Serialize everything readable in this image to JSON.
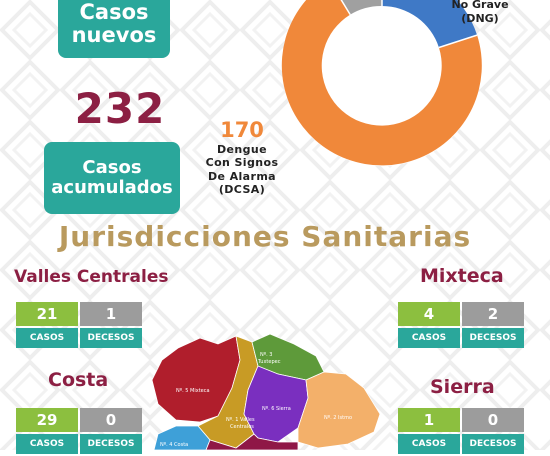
{
  "header": {
    "nuevos_line1": "Casos",
    "nuevos_line2": "nuevos",
    "acumulados_number": "232",
    "acumulados_line1": "Casos",
    "acumulados_line2": "acumulados"
  },
  "donut": {
    "dng_label_line1": "No Grave",
    "dng_label_line2": "(DNG)",
    "dcsa_value": "170",
    "dcsa_line1": "Dengue",
    "dcsa_line2": "Con Signos",
    "dcsa_line3": "De Alarma",
    "dcsa_line4": "(DCSA)",
    "colors": {
      "dcsa": "#f0883a",
      "dng": "#3f79c6",
      "other": "#a0a0a0"
    }
  },
  "section_title": "Jurisdicciones Sanitarias",
  "stat_labels": {
    "casos": "CASOS",
    "decesos": "DECESOS"
  },
  "regions": {
    "valles": {
      "name": "Valles Centrales",
      "casos": "21",
      "decesos": "1"
    },
    "costa": {
      "name": "Costa",
      "casos": "29",
      "decesos": "0"
    },
    "mixteca": {
      "name": "Mixteca",
      "casos": "4",
      "decesos": "2"
    },
    "sierra": {
      "name": "Sierra",
      "casos": "1",
      "decesos": "0"
    }
  },
  "map": {
    "labels": {
      "mixteca": "Nº. 5 Mixteca",
      "valles_1": "Nº. 1 Valles",
      "valles_2": "Centrales",
      "tuxtepec_1": "Nº. 3",
      "tuxtepec_2": "Tuxtepec",
      "sierra": "Nº. 6 Sierra",
      "istmo": "Nº. 2 Istmo",
      "costa": "Nº. 4 Costa"
    },
    "colors": {
      "mixteca": "#b01e2c",
      "valles": "#c89b25",
      "tuxtepec": "#5e9a3a",
      "sierra": "#7a2fbf",
      "istmo": "#f3b06a",
      "costa": "#3ea0d8",
      "sierra_sur": "#8f1746"
    }
  },
  "colors": {
    "teal": "#2aa79b",
    "maroon": "#8c1f43",
    "gold": "#b99a5e",
    "green": "#8cbf3f",
    "gray": "#9c9c9c"
  }
}
